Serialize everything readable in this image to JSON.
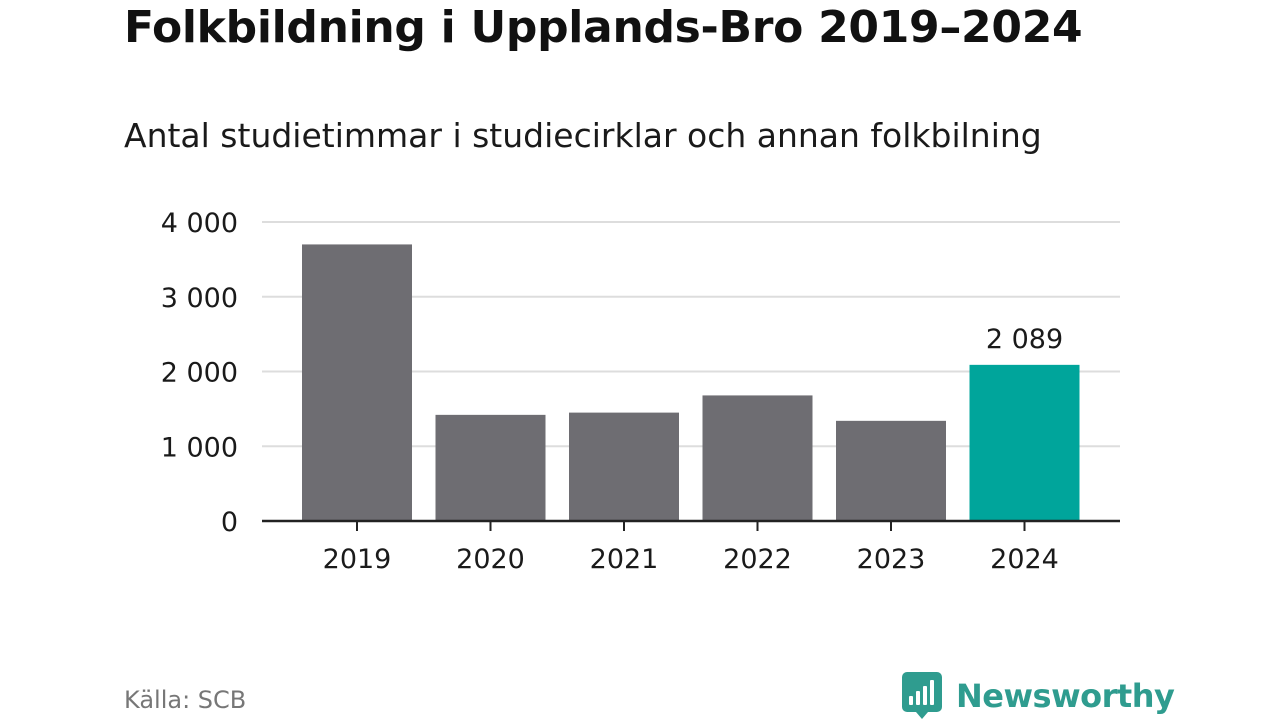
{
  "title": "Folkbildning i Upplands-Bro 2019–2024",
  "subtitle": "Antal studietimmar i studiecirklar och annan folkbilning",
  "source": "Källa: SCB",
  "brand": {
    "name": "Newsworthy",
    "color": "#2f9c8f",
    "icon": "newsworthy-logo-icon"
  },
  "colors": {
    "bar": "#6e6d72",
    "highlight": "#00a59b",
    "grid": "#dddddd",
    "axis": "#222222",
    "text": "#1a1a1a"
  },
  "chart_data": {
    "type": "bar",
    "categories": [
      "2019",
      "2020",
      "2021",
      "2022",
      "2023",
      "2024"
    ],
    "values": [
      3700,
      1420,
      1450,
      1680,
      1340,
      2089
    ],
    "highlight_index": 5,
    "data_labels": [
      null,
      null,
      null,
      null,
      null,
      "2 089"
    ],
    "ylim": [
      0,
      4000
    ],
    "yticks": [
      0,
      1000,
      2000,
      3000,
      4000
    ],
    "ytick_labels": [
      "0",
      "1 000",
      "2 000",
      "3 000",
      "4 000"
    ],
    "grid": true,
    "legend": "none",
    "xlabel": "",
    "ylabel": ""
  }
}
